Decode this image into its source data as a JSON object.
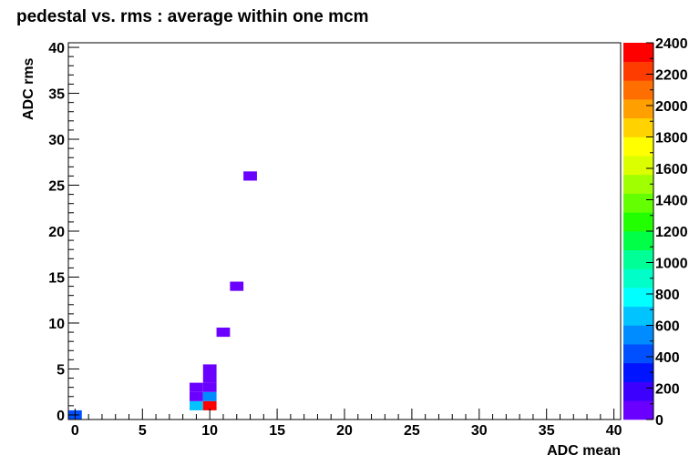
{
  "chart_data": {
    "type": "heatmap",
    "title": "pedestal vs. rms : average within one mcm",
    "xlabel": "ADC mean",
    "ylabel": "ADC rms",
    "xlim": [
      -0.5,
      40.5
    ],
    "ylim": [
      -0.5,
      40.5
    ],
    "bin_size": 1,
    "x_ticks": [
      "0",
      "5",
      "10",
      "15",
      "20",
      "25",
      "30",
      "35",
      "40"
    ],
    "y_ticks": [
      "0",
      "5",
      "10",
      "15",
      "20",
      "25",
      "30",
      "35",
      "40"
    ],
    "z_ticks": [
      "0",
      "200",
      "400",
      "600",
      "800",
      "1000",
      "1200",
      "1400",
      "1600",
      "1800",
      "2000",
      "2200",
      "2400"
    ],
    "zlim": [
      0,
      2400
    ],
    "palette": [
      "#6a00ff",
      "#3c00ff",
      "#0014ff",
      "#0050ff",
      "#008cff",
      "#00c3ff",
      "#00ffff",
      "#00ffc8",
      "#00ff96",
      "#00ff46",
      "#22ff00",
      "#64ff00",
      "#a0ff00",
      "#dcff00",
      "#ffff00",
      "#ffd200",
      "#ffa000",
      "#ff6e00",
      "#ff3c00",
      "#ff0000"
    ],
    "cells": [
      {
        "x": 0,
        "y": 0,
        "z": 400
      },
      {
        "x": 9,
        "y": 1,
        "z": 700
      },
      {
        "x": 10,
        "y": 1,
        "z": 2400
      },
      {
        "x": 9,
        "y": 2,
        "z": 80
      },
      {
        "x": 10,
        "y": 2,
        "z": 500
      },
      {
        "x": 9,
        "y": 3,
        "z": 60
      },
      {
        "x": 10,
        "y": 3,
        "z": 80
      },
      {
        "x": 10,
        "y": 4,
        "z": 60
      },
      {
        "x": 10,
        "y": 5,
        "z": 40
      },
      {
        "x": 11,
        "y": 9,
        "z": 60
      },
      {
        "x": 12,
        "y": 14,
        "z": 60
      },
      {
        "x": 13,
        "y": 26,
        "z": 60
      }
    ]
  }
}
